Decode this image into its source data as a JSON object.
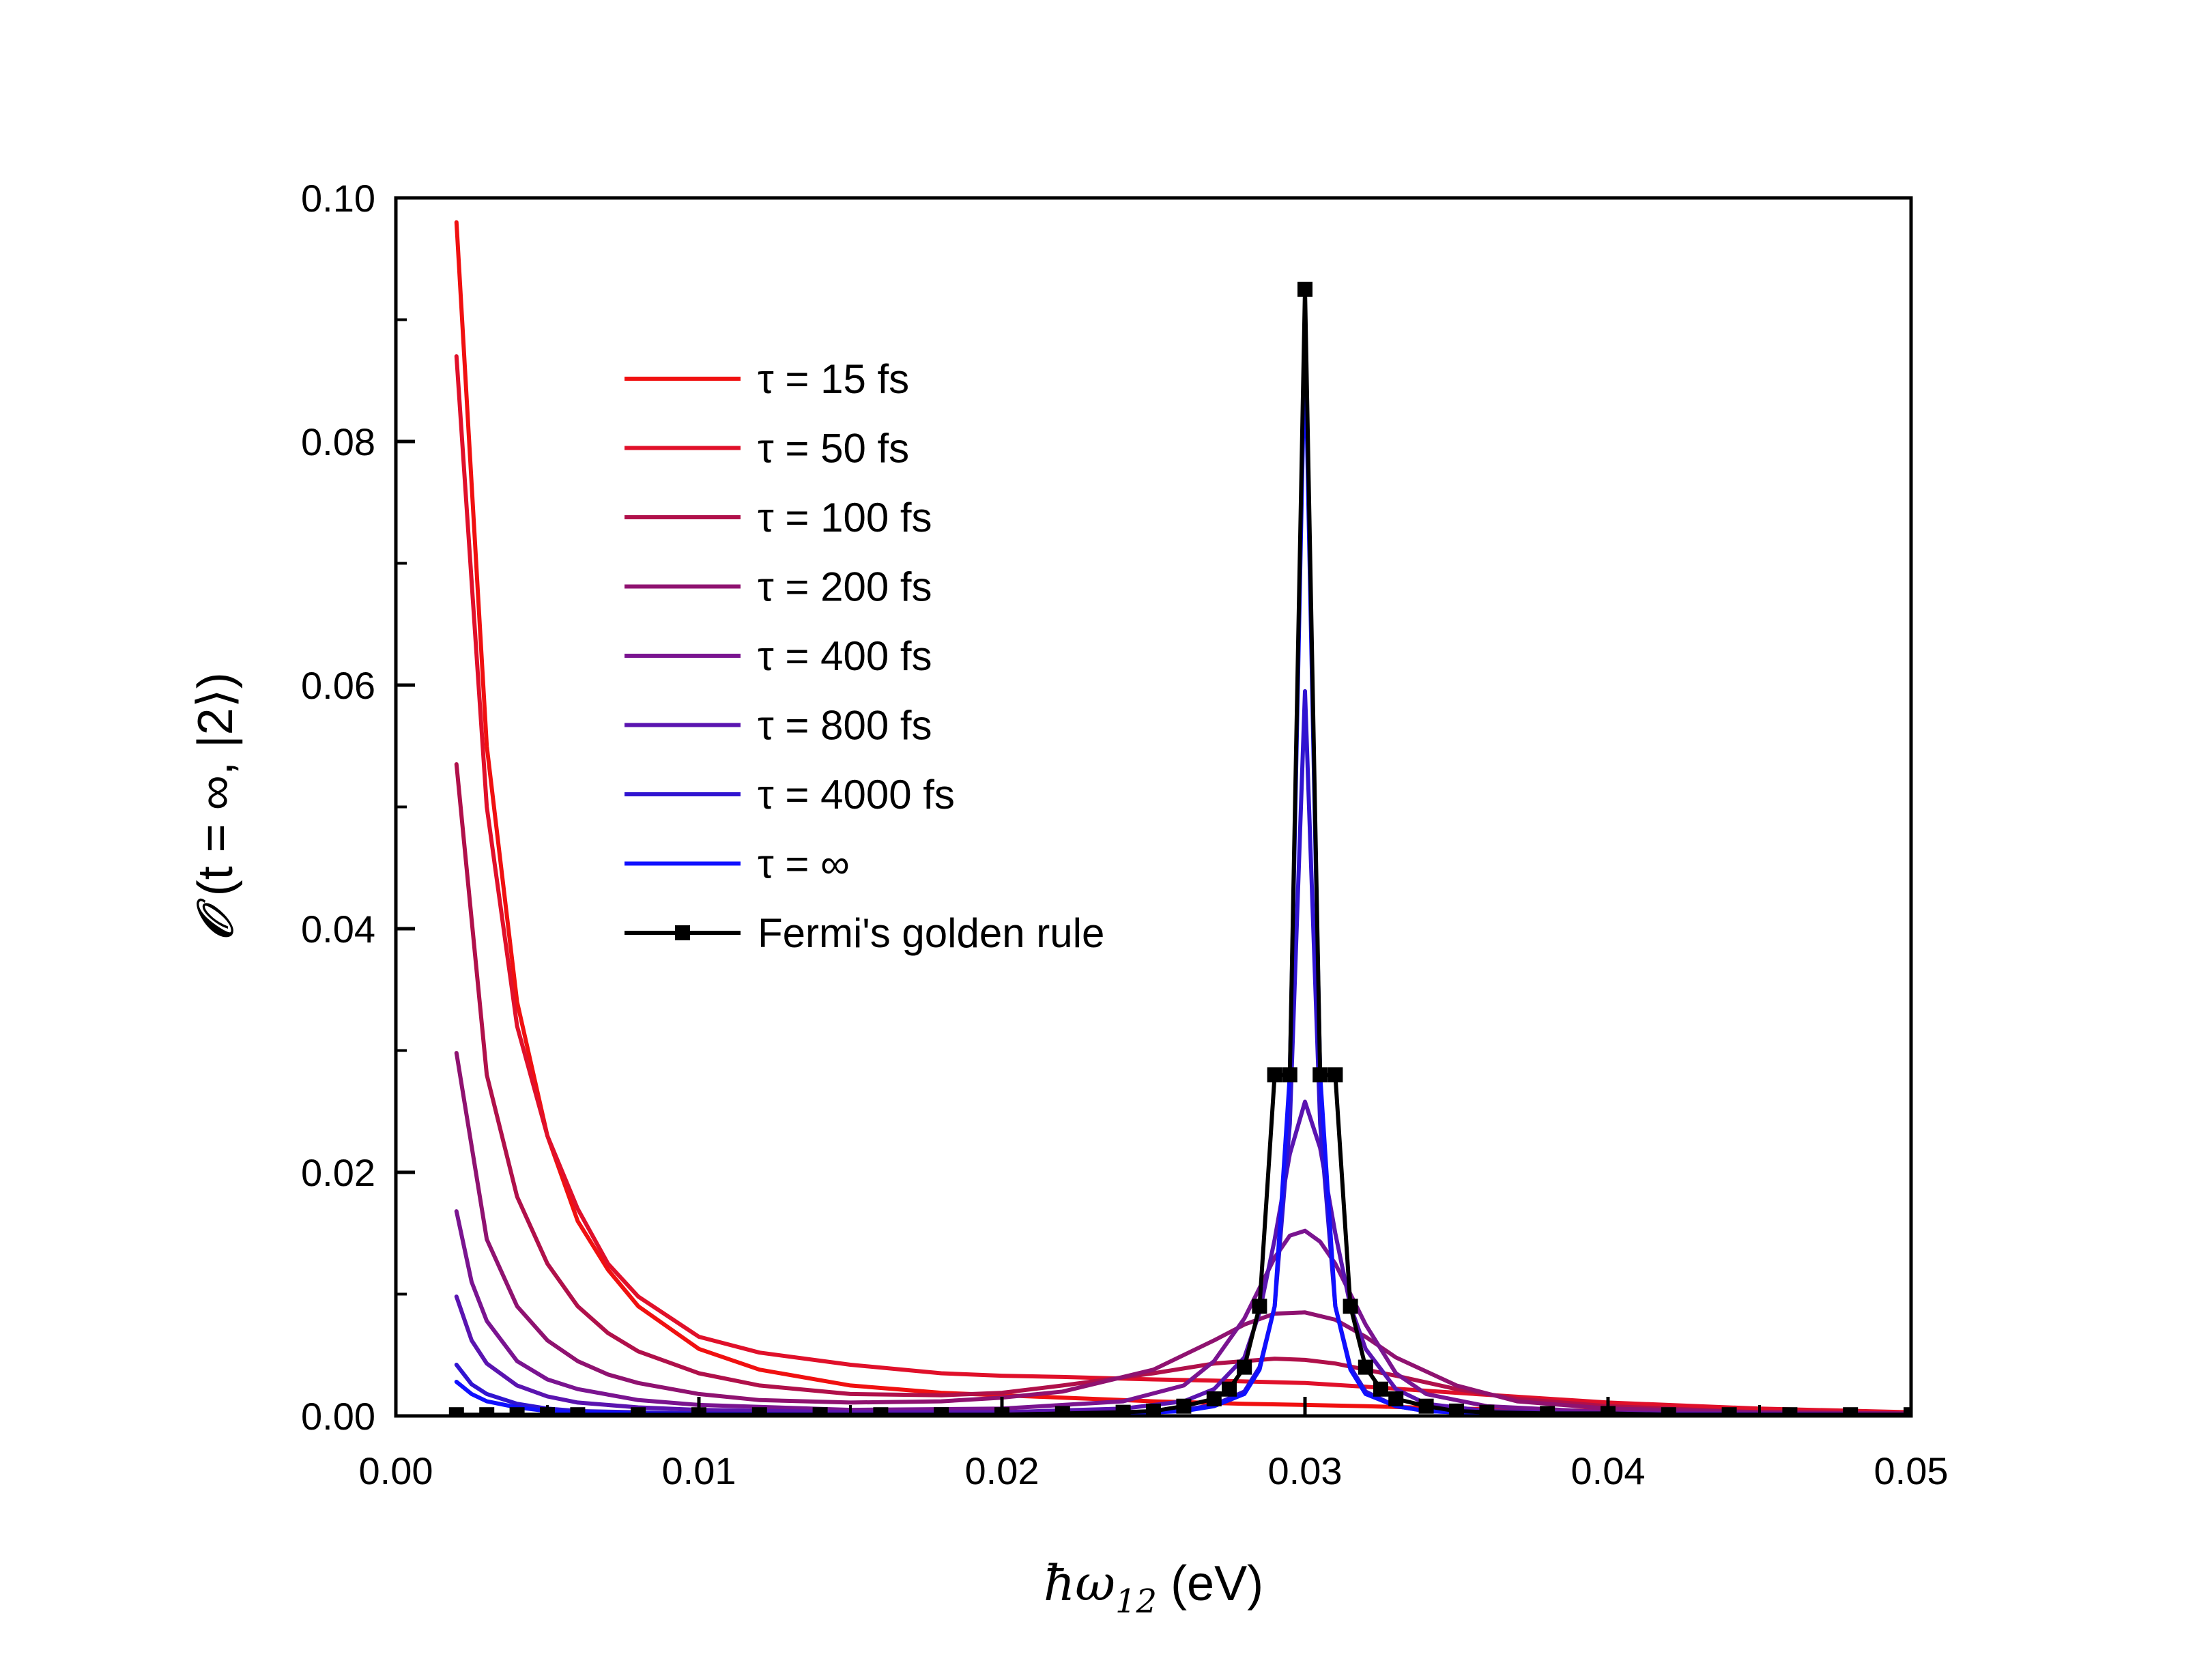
{
  "chart_data": {
    "type": "line",
    "xlabel": {
      "symbol": "ħω",
      "subscript": "12",
      "unit": " (eV)"
    },
    "ylabel": {
      "symbol": "𝒪",
      "text": " (t = ∞, |2⟩)"
    },
    "xlim": [
      0.0,
      0.05
    ],
    "ylim": [
      0.0,
      0.1
    ],
    "xticks": [
      0.0,
      0.01,
      0.02,
      0.03,
      0.04,
      0.05
    ],
    "xtick_labels": [
      "0.00",
      "0.01",
      "0.02",
      "0.03",
      "0.04",
      "0.05"
    ],
    "yticks": [
      0.0,
      0.02,
      0.04,
      0.06,
      0.08,
      0.1
    ],
    "ytick_labels": [
      "0.00",
      "0.02",
      "0.04",
      "0.06",
      "0.08",
      "0.10"
    ],
    "grid": false,
    "legend_position": "upper-left-center",
    "series": [
      {
        "name": "τ = 15 fs",
        "color": "#f01010",
        "x": [
          0.002,
          0.003,
          0.004,
          0.005,
          0.006,
          0.007,
          0.008,
          0.01,
          0.012,
          0.015,
          0.018,
          0.02,
          0.022,
          0.025,
          0.028,
          0.03,
          0.032,
          0.035,
          0.04,
          0.045,
          0.05
        ],
        "y": [
          0.098,
          0.055,
          0.034,
          0.023,
          0.016,
          0.012,
          0.009,
          0.0055,
          0.0038,
          0.0025,
          0.0019,
          0.0017,
          0.0015,
          0.0012,
          0.001,
          0.0009,
          0.0008,
          0.0006,
          0.0004,
          0.0003,
          0.0002
        ]
      },
      {
        "name": "τ = 50 fs",
        "color": "#e0102a",
        "x": [
          0.002,
          0.003,
          0.004,
          0.005,
          0.006,
          0.007,
          0.008,
          0.01,
          0.012,
          0.015,
          0.018,
          0.02,
          0.022,
          0.025,
          0.027,
          0.03,
          0.032,
          0.035,
          0.04,
          0.045,
          0.05
        ],
        "y": [
          0.087,
          0.05,
          0.032,
          0.023,
          0.017,
          0.0125,
          0.0098,
          0.0065,
          0.0052,
          0.0042,
          0.0035,
          0.0033,
          0.0032,
          0.003,
          0.0029,
          0.0027,
          0.0024,
          0.0019,
          0.0011,
          0.0006,
          0.0003
        ]
      },
      {
        "name": "τ = 100 fs",
        "color": "#b0104a",
        "x": [
          0.002,
          0.003,
          0.004,
          0.005,
          0.006,
          0.007,
          0.008,
          0.01,
          0.012,
          0.015,
          0.018,
          0.02,
          0.022,
          0.025,
          0.027,
          0.029,
          0.03,
          0.031,
          0.033,
          0.035,
          0.037,
          0.04,
          0.045,
          0.05
        ],
        "y": [
          0.0535,
          0.028,
          0.018,
          0.0125,
          0.009,
          0.0068,
          0.0053,
          0.0035,
          0.0025,
          0.0018,
          0.0017,
          0.0019,
          0.0025,
          0.0035,
          0.0043,
          0.0047,
          0.0046,
          0.0043,
          0.0033,
          0.0022,
          0.0014,
          0.0008,
          0.0003,
          0.0002
        ]
      },
      {
        "name": "τ = 200 fs",
        "color": "#8f1270",
        "x": [
          0.002,
          0.003,
          0.004,
          0.005,
          0.006,
          0.007,
          0.008,
          0.01,
          0.012,
          0.015,
          0.018,
          0.02,
          0.022,
          0.025,
          0.027,
          0.028,
          0.029,
          0.03,
          0.031,
          0.032,
          0.033,
          0.035,
          0.037,
          0.04,
          0.045,
          0.05
        ],
        "y": [
          0.0298,
          0.0145,
          0.009,
          0.0062,
          0.0045,
          0.0034,
          0.0027,
          0.0018,
          0.0013,
          0.0011,
          0.0012,
          0.0015,
          0.002,
          0.0038,
          0.0062,
          0.0075,
          0.0084,
          0.0085,
          0.0079,
          0.0065,
          0.0048,
          0.0025,
          0.0012,
          0.0006,
          0.0003,
          0.0002
        ]
      },
      {
        "name": "τ = 400 fs",
        "color": "#7a1490",
        "x": [
          0.002,
          0.0025,
          0.003,
          0.004,
          0.005,
          0.006,
          0.008,
          0.01,
          0.015,
          0.02,
          0.024,
          0.026,
          0.027,
          0.028,
          0.0285,
          0.029,
          0.0295,
          0.03,
          0.0305,
          0.031,
          0.032,
          0.033,
          0.034,
          0.036,
          0.04,
          0.05
        ],
        "y": [
          0.0168,
          0.011,
          0.0078,
          0.0045,
          0.003,
          0.0022,
          0.0013,
          0.0009,
          0.0005,
          0.0006,
          0.0012,
          0.0025,
          0.0045,
          0.008,
          0.0105,
          0.013,
          0.0148,
          0.0152,
          0.0143,
          0.0125,
          0.0075,
          0.0035,
          0.0018,
          0.0008,
          0.0003,
          0.0001
        ]
      },
      {
        "name": "τ = 800 fs",
        "color": "#5a14b0",
        "x": [
          0.002,
          0.0025,
          0.003,
          0.004,
          0.005,
          0.006,
          0.008,
          0.01,
          0.015,
          0.02,
          0.024,
          0.026,
          0.027,
          0.028,
          0.0285,
          0.029,
          0.0295,
          0.03,
          0.0305,
          0.031,
          0.0315,
          0.032,
          0.033,
          0.034,
          0.036,
          0.04,
          0.05
        ],
        "y": [
          0.0098,
          0.0062,
          0.0043,
          0.0025,
          0.0016,
          0.0011,
          0.0007,
          0.0005,
          0.0003,
          0.0003,
          0.0006,
          0.0012,
          0.0022,
          0.0048,
          0.0085,
          0.0145,
          0.0215,
          0.0258,
          0.022,
          0.015,
          0.009,
          0.0055,
          0.0022,
          0.001,
          0.0004,
          0.0002,
          0.0001
        ]
      },
      {
        "name": "τ = 4000 fs",
        "color": "#3014d0",
        "x": [
          0.002,
          0.0025,
          0.003,
          0.004,
          0.005,
          0.006,
          0.008,
          0.01,
          0.015,
          0.02,
          0.024,
          0.026,
          0.027,
          0.028,
          0.0285,
          0.029,
          0.0295,
          0.03,
          0.0305,
          0.031,
          0.0315,
          0.032,
          0.033,
          0.034,
          0.036,
          0.04,
          0.05
        ],
        "y": [
          0.0042,
          0.0026,
          0.0018,
          0.001,
          0.0006,
          0.0004,
          0.0003,
          0.0002,
          0.0001,
          0.0001,
          0.0002,
          0.0005,
          0.0009,
          0.002,
          0.004,
          0.009,
          0.024,
          0.0595,
          0.024,
          0.009,
          0.004,
          0.002,
          0.0008,
          0.0004,
          0.0002,
          0.0001,
          0.0
        ]
      },
      {
        "name": "τ = ∞",
        "color": "#1010ff",
        "x": [
          0.002,
          0.0025,
          0.003,
          0.004,
          0.005,
          0.006,
          0.008,
          0.01,
          0.015,
          0.02,
          0.024,
          0.026,
          0.027,
          0.028,
          0.0285,
          0.029,
          0.0295,
          0.03,
          0.0305,
          0.031,
          0.0315,
          0.032,
          0.033,
          0.034,
          0.036,
          0.04,
          0.05
        ],
        "y": [
          0.0028,
          0.0018,
          0.0012,
          0.0007,
          0.0004,
          0.0003,
          0.0002,
          0.0001,
          0.0001,
          0.0001,
          0.0002,
          0.0004,
          0.0008,
          0.0018,
          0.0038,
          0.009,
          0.028,
          0.0885,
          0.028,
          0.009,
          0.0038,
          0.0018,
          0.0008,
          0.0004,
          0.0002,
          0.0001,
          0.0
        ]
      },
      {
        "name": "Fermi's golden rule",
        "color": "#000000",
        "markers": true,
        "x": [
          0.002,
          0.003,
          0.004,
          0.005,
          0.006,
          0.008,
          0.01,
          0.012,
          0.014,
          0.016,
          0.018,
          0.02,
          0.022,
          0.024,
          0.025,
          0.026,
          0.027,
          0.0275,
          0.028,
          0.0285,
          0.029,
          0.0295,
          0.03,
          0.0305,
          0.031,
          0.0315,
          0.032,
          0.0325,
          0.033,
          0.034,
          0.035,
          0.036,
          0.038,
          0.04,
          0.042,
          0.044,
          0.046,
          0.048,
          0.05
        ],
        "y": [
          0.0001,
          0.0001,
          0.0001,
          0.0001,
          0.0001,
          0.0001,
          0.0001,
          0.0001,
          0.0001,
          0.0001,
          0.0001,
          0.0001,
          0.0002,
          0.0003,
          0.0004,
          0.0008,
          0.0014,
          0.0022,
          0.004,
          0.009,
          0.028,
          0.028,
          0.0925,
          0.028,
          0.028,
          0.009,
          0.004,
          0.0022,
          0.0014,
          0.0008,
          0.0004,
          0.0003,
          0.0002,
          0.0002,
          0.0001,
          0.0001,
          0.0001,
          0.0001,
          0.0001
        ]
      }
    ]
  }
}
